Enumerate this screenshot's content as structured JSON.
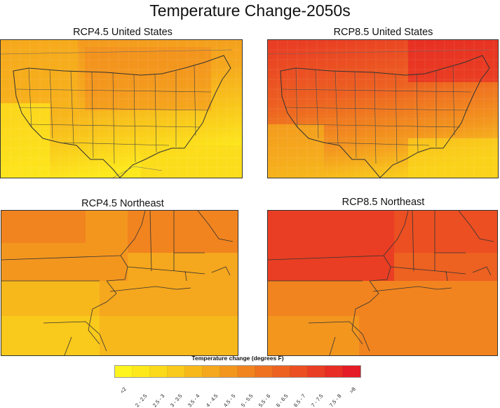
{
  "title": "Temperature Change-2050s",
  "panels": [
    {
      "title": "RCP4.5 United States",
      "scenario": "RCP4.5",
      "region": "United States"
    },
    {
      "title": "RCP8.5 United States",
      "scenario": "RCP8.5",
      "region": "United States"
    },
    {
      "title": "RCP4.5 Northeast",
      "scenario": "RCP4.5",
      "region": "Northeast"
    },
    {
      "title": "RCP8.5 Northeast",
      "scenario": "RCP8.5",
      "region": "Northeast"
    }
  ],
  "legend": {
    "title": "Temperature change (degrees F)",
    "bins": [
      "<2",
      "2 - 2.5",
      "2.5 - 3",
      "3 - 3.5",
      "3.5 - 4",
      "4 - 4.5",
      "4.5 - 5",
      "5 - 5.5",
      "5.5 - 6",
      "6 - 6.5",
      "6.5 - 7",
      "7 - 7.5",
      "7.5 - 8",
      ">8"
    ],
    "colors": [
      "#fff51e",
      "#fde81c",
      "#fbd91b",
      "#f9c91b",
      "#f7b81c",
      "#f5a71d",
      "#f3961e",
      "#f1841f",
      "#ef7220",
      "#ed6121",
      "#eb4f22",
      "#e93e23",
      "#e72d24",
      "#e51c25"
    ]
  }
}
